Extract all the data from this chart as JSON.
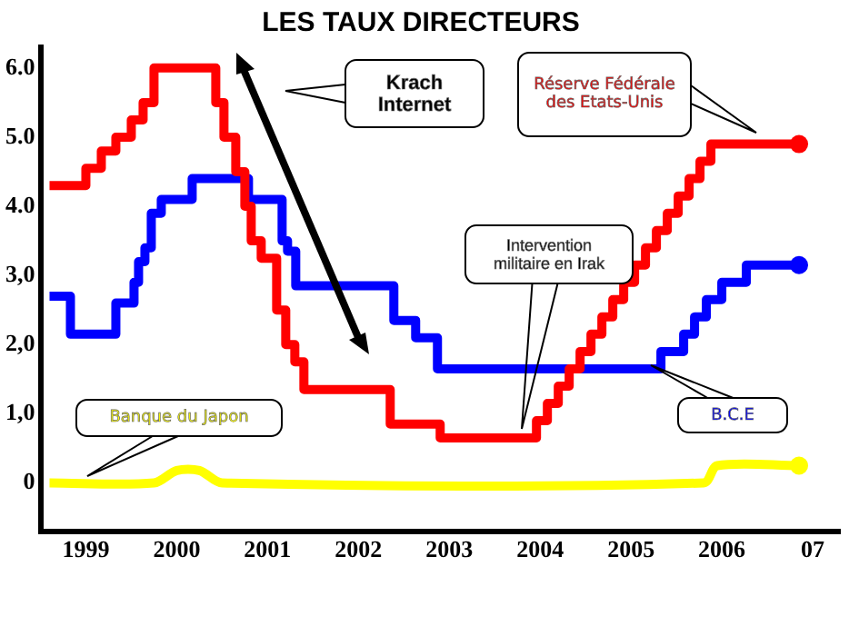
{
  "chart_data": {
    "type": "step",
    "title": "LES TAUX DIRECTEURS",
    "xlim": [
      1998.5,
      2007.3
    ],
    "ylim": [
      -0.7,
      6.3
    ],
    "xticks": [
      1999,
      2000,
      2001,
      2002,
      2003,
      2004,
      2005,
      2006,
      {
        "value": 2007,
        "label": "07"
      }
    ],
    "yticks": [
      {
        "value": 0,
        "label": "0"
      },
      {
        "value": 1,
        "label": "1,0"
      },
      {
        "value": 2,
        "label": "2,0"
      },
      {
        "value": 3,
        "label": "3,0"
      },
      {
        "value": 4,
        "label": "4.0"
      },
      {
        "value": 5,
        "label": "5.0"
      },
      {
        "value": 6,
        "label": "6.0"
      }
    ],
    "grid": false,
    "legend": false,
    "annotations": [
      "Krach Internet",
      "Intervention militaire en Irak"
    ],
    "series": [
      {
        "name": "Réserve Fédérale des Etats-Unis",
        "color": "#ff0000",
        "x": [
          1998.6,
          1999.0,
          1999.17,
          1999.33,
          1999.5,
          1999.63,
          1999.75,
          2000.43,
          2000.52,
          2000.65,
          2000.75,
          2000.82,
          2000.93,
          2001.1,
          2001.2,
          2001.3,
          2001.4,
          2002.35,
          2002.9,
          2003.96,
          2004.08,
          2004.2,
          2004.32,
          2004.44,
          2004.56,
          2004.68,
          2004.8,
          2004.92,
          2005.04,
          2005.16,
          2005.28,
          2005.4,
          2005.52,
          2005.64,
          2005.76,
          2005.88,
          2006.85
        ],
        "values": [
          4.3,
          4.55,
          4.8,
          5.0,
          5.25,
          5.5,
          6.0,
          5.5,
          5.0,
          4.5,
          4.0,
          3.5,
          3.25,
          2.5,
          2.0,
          1.75,
          1.35,
          0.85,
          0.65,
          0.9,
          1.15,
          1.4,
          1.65,
          1.9,
          2.15,
          2.4,
          2.65,
          2.9,
          3.15,
          3.4,
          3.65,
          3.9,
          4.15,
          4.4,
          4.65,
          4.9,
          4.9
        ]
      },
      {
        "name": "B.C.E",
        "color": "#0000ff",
        "x": [
          1998.6,
          1998.83,
          1999.33,
          1999.53,
          1999.58,
          1999.65,
          1999.72,
          1999.83,
          2000.06,
          2000.17,
          2000.79,
          2001.16,
          2001.22,
          2001.31,
          2002.39,
          2002.63,
          2002.87,
          2005.33,
          2005.58,
          2005.7,
          2005.83,
          2006.0,
          2006.27,
          2006.77,
          2006.85
        ],
        "values": [
          2.7,
          2.15,
          2.6,
          2.9,
          3.2,
          3.4,
          3.9,
          4.1,
          4.1,
          4.4,
          4.1,
          3.5,
          3.35,
          2.85,
          2.35,
          2.1,
          1.65,
          1.9,
          2.15,
          2.4,
          2.65,
          2.9,
          3.15,
          3.15,
          3.15
        ]
      },
      {
        "name": "Banque du Japon",
        "type": "line",
        "color": "#ffff00",
        "x": [
          1998.6,
          1999.75,
          2000.0,
          2000.25,
          2000.5,
          2005.8,
          2005.95,
          2006.85
        ],
        "values": [
          0,
          0,
          0.18,
          0.18,
          0,
          0,
          0.25,
          0.25
        ]
      }
    ]
  }
}
